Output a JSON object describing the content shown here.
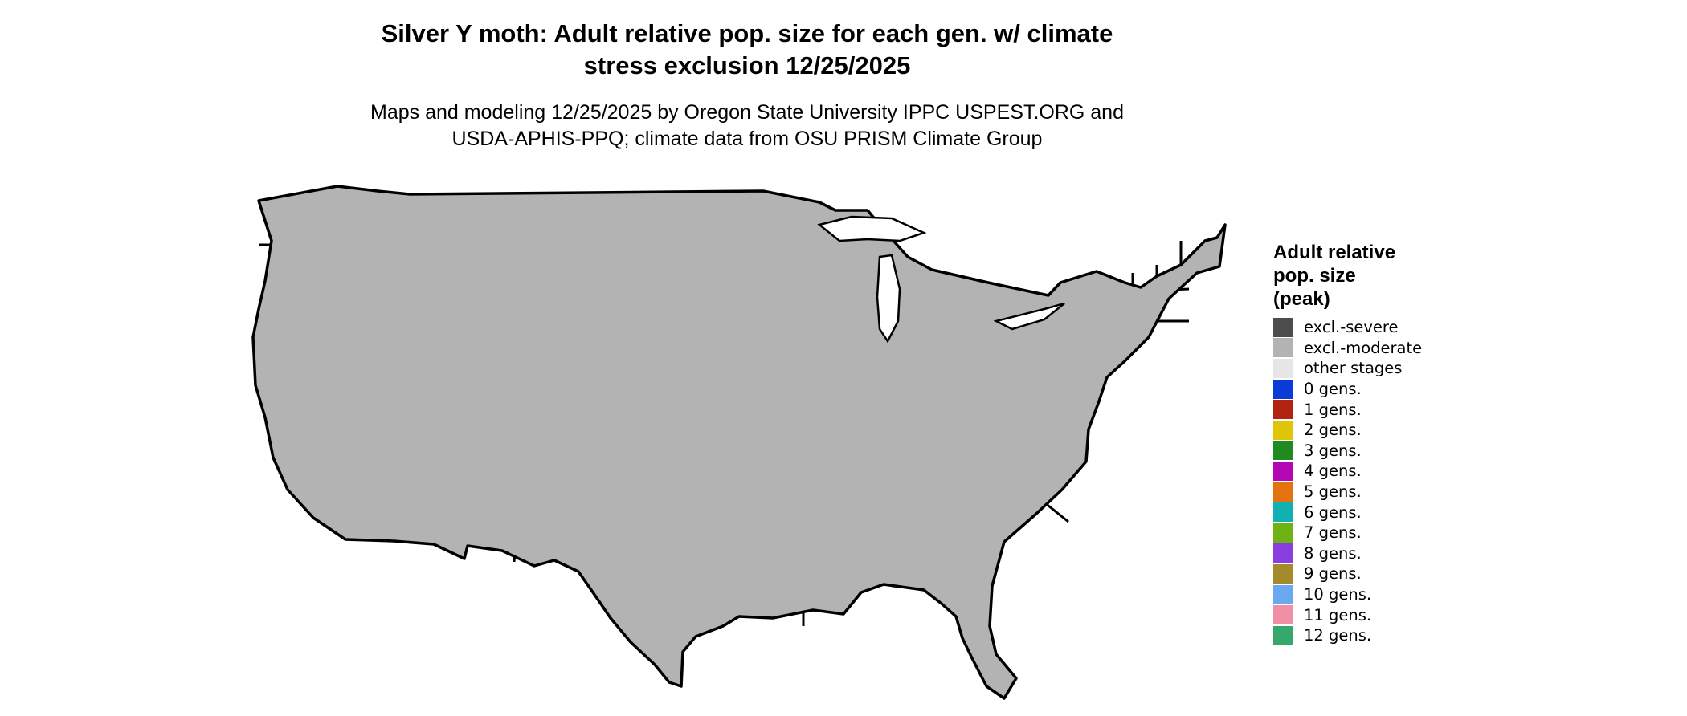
{
  "title": {
    "line1": "Silver Y moth: Adult relative pop. size for each gen. w/ climate",
    "line2": "stress exclusion 12/25/2025"
  },
  "subtitle": {
    "line1": "Maps and modeling 12/25/2025 by Oregon State University IPPC USPEST.ORG and",
    "line2": "USDA-APHIS-PPQ; climate data from OSU PRISM Climate Group"
  },
  "legend": {
    "title_lines": [
      "Adult relative",
      "pop. size",
      "(peak)"
    ],
    "items": [
      {
        "label": "excl.-severe",
        "color": "#4d4d4d"
      },
      {
        "label": "excl.-moderate",
        "color": "#b3b3b3"
      },
      {
        "label": "other stages",
        "color": "#e6e6e6"
      },
      {
        "label": "0 gens.",
        "color": "#0a3bd7"
      },
      {
        "label": "1 gens.",
        "color": "#b22411"
      },
      {
        "label": "2 gens.",
        "color": "#e0c40a"
      },
      {
        "label": "3 gens.",
        "color": "#1f8a1f"
      },
      {
        "label": "4 gens.",
        "color": "#b207b2"
      },
      {
        "label": "5 gens.",
        "color": "#e3720f"
      },
      {
        "label": "6 gens.",
        "color": "#10b0b3"
      },
      {
        "label": "7 gens.",
        "color": "#6fb214"
      },
      {
        "label": "8 gens.",
        "color": "#8a3ee0"
      },
      {
        "label": "9 gens.",
        "color": "#a38a2c"
      },
      {
        "label": "10 gens.",
        "color": "#6aa8f0"
      },
      {
        "label": "11 gens.",
        "color": "#f08fa6"
      },
      {
        "label": "12 gens.",
        "color": "#37a86b"
      }
    ]
  },
  "map_colors": {
    "excluded": "#b3b3b3",
    "other": "#e6e6e6",
    "border": "#000000"
  }
}
